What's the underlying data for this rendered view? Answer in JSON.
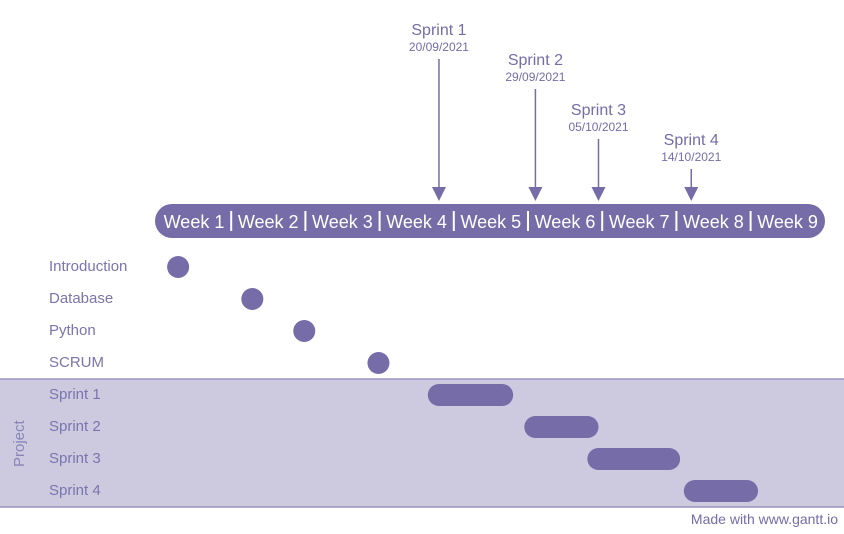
{
  "chart_data": {
    "type": "gantt",
    "timeline": {
      "unit": "week",
      "labels": [
        "Week 1",
        "Week 2",
        "Week 3",
        "Week 4",
        "Week 5",
        "Week 6",
        "Week 7",
        "Week 8",
        "Week 9"
      ]
    },
    "milestones": [
      {
        "name": "Sprint 1",
        "date": "20/09/2021",
        "week": 3.8
      },
      {
        "name": "Sprint 2",
        "date": "29/09/2021",
        "week": 5.1
      },
      {
        "name": "Sprint 3",
        "date": "05/10/2021",
        "week": 5.95
      },
      {
        "name": "Sprint 4",
        "date": "14/10/2021",
        "week": 7.2
      }
    ],
    "tasks": [
      {
        "label": "Introduction",
        "kind": "milestone-dot",
        "start": 0.15
      },
      {
        "label": "Database",
        "kind": "milestone-dot",
        "start": 1.15
      },
      {
        "label": "Python",
        "kind": "milestone-dot",
        "start": 1.85
      },
      {
        "label": "SCRUM",
        "kind": "milestone-dot",
        "start": 2.85
      }
    ],
    "groups": [
      {
        "label": "Project",
        "tasks": [
          {
            "label": "Sprint 1",
            "start": 3.65,
            "end": 4.8
          },
          {
            "label": "Sprint 2",
            "start": 4.95,
            "end": 5.95
          },
          {
            "label": "Sprint 3",
            "start": 5.8,
            "end": 7.05
          },
          {
            "label": "Sprint 4",
            "start": 7.1,
            "end": 8.1
          }
        ]
      }
    ],
    "colors": {
      "accent": "#756ca8",
      "group_band": "#cdcae0",
      "band_line": "#9a93c4",
      "text": "#7b74ad"
    }
  },
  "footer": "Made with www.gantt.io"
}
